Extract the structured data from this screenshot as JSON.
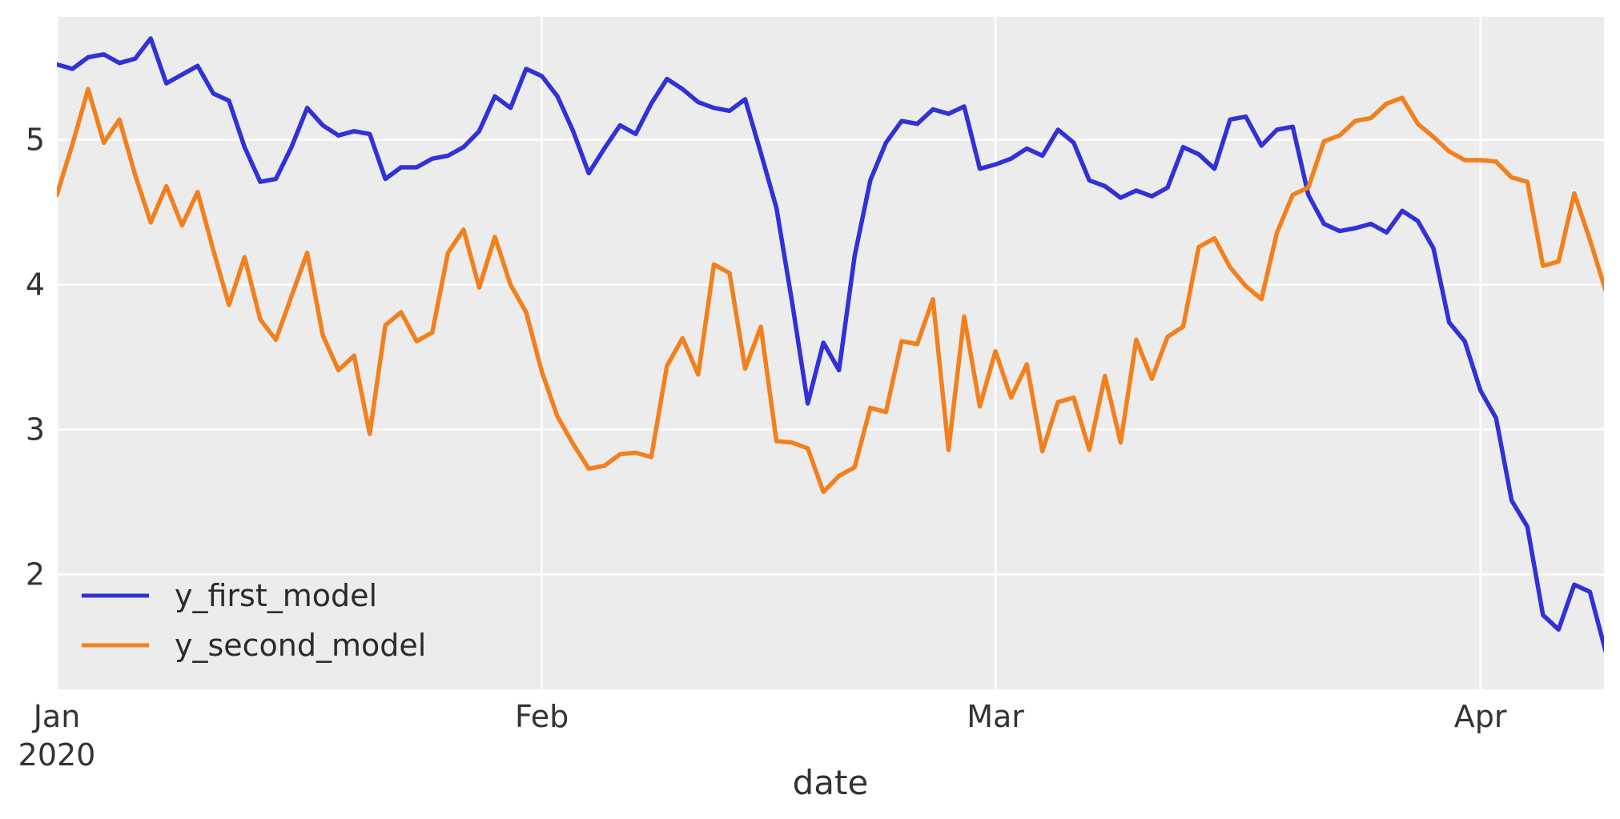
{
  "chart_data": {
    "type": "line",
    "title": "",
    "xlabel": "date",
    "ylabel": "",
    "x_start": "2020-01-01",
    "x_frequency": "daily",
    "x_tick_labels": [
      {
        "label": "Jan",
        "sub": "2020",
        "day_index": 0
      },
      {
        "label": "Feb",
        "sub": "",
        "day_index": 31
      },
      {
        "label": "Mar",
        "sub": "",
        "day_index": 60
      },
      {
        "label": "Apr",
        "sub": "",
        "day_index": 91
      }
    ],
    "y_ticks": [
      2,
      3,
      4,
      5
    ],
    "ylim": [
      1.207,
      5.849
    ],
    "xlim_days": [
      0,
      98.9
    ],
    "grid": true,
    "legend_position": "lower-left",
    "plot_background": "#ececec",
    "grid_color": "#ffffff",
    "text_color": "#333333",
    "series": [
      {
        "name": "y_first_model",
        "color": "#3131d8",
        "values": [
          5.52,
          5.49,
          5.57,
          5.59,
          5.53,
          5.56,
          5.7,
          5.39,
          5.45,
          5.51,
          5.32,
          5.27,
          4.95,
          4.71,
          4.73,
          4.95,
          5.22,
          5.1,
          5.03,
          5.06,
          5.04,
          4.73,
          4.81,
          4.81,
          4.87,
          4.89,
          4.95,
          5.06,
          5.3,
          5.22,
          5.49,
          5.44,
          5.3,
          5.06,
          4.77,
          4.94,
          5.1,
          5.04,
          5.25,
          5.42,
          5.35,
          5.26,
          5.22,
          5.2,
          5.28,
          4.91,
          4.53,
          3.88,
          3.18,
          3.6,
          3.41,
          4.2,
          4.72,
          4.98,
          5.13,
          5.11,
          5.21,
          5.18,
          5.23,
          4.8,
          4.83,
          4.87,
          4.94,
          4.89,
          5.07,
          4.98,
          4.72,
          4.68,
          4.6,
          4.65,
          4.61,
          4.67,
          4.95,
          4.9,
          4.8,
          5.14,
          5.16,
          4.96,
          5.07,
          5.09,
          4.62,
          4.42,
          4.37,
          4.39,
          4.42,
          4.36,
          4.51,
          4.44,
          4.25,
          3.74,
          3.61,
          3.27,
          3.08,
          2.51,
          2.33,
          1.72,
          1.62,
          1.93,
          1.88,
          1.47
        ]
      },
      {
        "name": "y_second_model",
        "color": "#f2801e",
        "values": [
          4.62,
          4.97,
          5.35,
          4.98,
          5.14,
          4.76,
          4.43,
          4.68,
          4.41,
          4.64,
          4.24,
          3.86,
          4.19,
          3.76,
          3.62,
          3.92,
          4.22,
          3.65,
          3.41,
          3.51,
          2.97,
          3.72,
          3.81,
          3.61,
          3.67,
          4.22,
          4.38,
          3.98,
          4.33,
          4.0,
          3.81,
          3.4,
          3.09,
          2.9,
          2.73,
          2.75,
          2.83,
          2.84,
          2.81,
          3.44,
          3.63,
          3.38,
          4.14,
          4.08,
          3.42,
          3.71,
          2.92,
          2.91,
          2.87,
          2.57,
          2.68,
          2.74,
          3.15,
          3.12,
          3.61,
          3.59,
          3.9,
          2.86,
          3.78,
          3.16,
          3.54,
          3.22,
          3.45,
          2.85,
          3.19,
          3.22,
          2.86,
          3.37,
          2.91,
          3.62,
          3.35,
          3.64,
          3.71,
          4.26,
          4.32,
          4.12,
          3.99,
          3.9,
          4.36,
          4.62,
          4.67,
          4.99,
          5.03,
          5.13,
          5.15,
          5.25,
          5.29,
          5.11,
          5.02,
          4.92,
          4.86,
          4.86,
          4.85,
          4.74,
          4.71,
          4.13,
          4.16,
          4.63,
          4.31,
          3.96
        ]
      }
    ]
  }
}
